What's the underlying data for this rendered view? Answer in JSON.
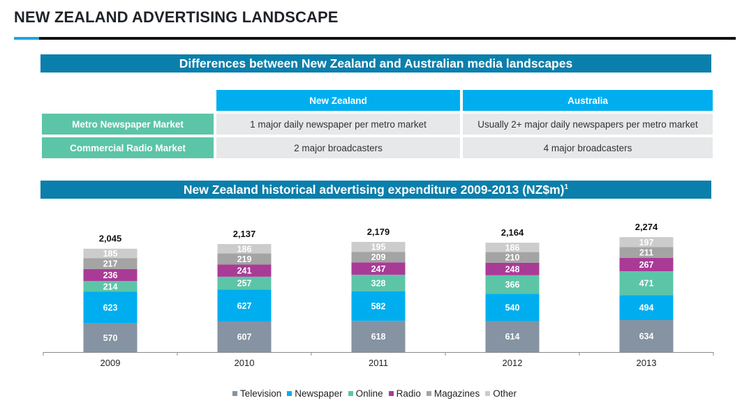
{
  "page": {
    "title": "NEW ZEALAND ADVERTISING LANDSCAPE"
  },
  "table": {
    "heading": "Differences between New Zealand and Australian media landscapes",
    "columns": [
      "New Zealand",
      "Australia"
    ],
    "rows": [
      {
        "label": "Metro Newspaper Market",
        "cells": [
          "1 major daily newspaper per metro market",
          "Usually 2+ major daily newspapers per metro market"
        ]
      },
      {
        "label": "Commercial Radio Market",
        "cells": [
          "2 major broadcasters",
          "4 major broadcasters"
        ]
      }
    ]
  },
  "chart_heading": {
    "text": "New Zealand historical advertising expenditure 2009-2013 (NZ$m)",
    "footnote": "1"
  },
  "chart_data": {
    "type": "bar",
    "stacked": true,
    "categories": [
      "2009",
      "2010",
      "2011",
      "2012",
      "2013"
    ],
    "totals": [
      "2,045",
      "2,137",
      "2,179",
      "2,164",
      "2,274"
    ],
    "series": [
      {
        "name": "Television",
        "color": "#8593a2",
        "values": [
          570,
          607,
          618,
          614,
          634
        ]
      },
      {
        "name": "Newspaper",
        "color": "#00aeef",
        "values": [
          623,
          627,
          582,
          540,
          494
        ]
      },
      {
        "name": "Online",
        "color": "#5cc5a7",
        "values": [
          214,
          257,
          328,
          366,
          471
        ]
      },
      {
        "name": "Radio",
        "color": "#a93b97",
        "values": [
          236,
          241,
          247,
          248,
          267
        ]
      },
      {
        "name": "Magazines",
        "color": "#a4a4a4",
        "values": [
          217,
          219,
          209,
          210,
          211
        ]
      },
      {
        "name": "Other",
        "color": "#cccccc",
        "values": [
          185,
          186,
          195,
          186,
          197
        ]
      }
    ],
    "legend_position": "bottom",
    "grid": false
  }
}
